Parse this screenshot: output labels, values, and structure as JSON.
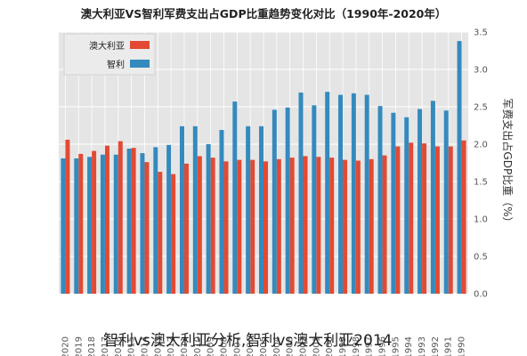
{
  "caption": "智利vs澳大利亚分析,智利vs澳大利亚2014",
  "colors": {
    "australia": "#e24a33",
    "chile": "#348abd",
    "plot_bg": "#e5e5e5",
    "grid": "#ffffff"
  },
  "chart_data": {
    "type": "bar",
    "title": "澳大利亚VS智利军费支出占GDP比重趋势变化对比（1990年-2020年）",
    "ylabel": "军费支出占GDP比重（%）",
    "xlabel": "",
    "ylim": [
      0,
      3.5
    ],
    "yticks": [
      0.0,
      0.5,
      1.0,
      1.5,
      2.0,
      2.5,
      3.0,
      3.5
    ],
    "grid": true,
    "legend_position": "top-right",
    "categories": [
      "1990",
      "1991",
      "1992",
      "1993",
      "1994",
      "1995",
      "1996",
      "1997",
      "1998",
      "1999",
      "2000",
      "2001",
      "2002",
      "2003",
      "2004",
      "2005",
      "2006",
      "2007",
      "2008",
      "2009",
      "2010",
      "2011",
      "2012",
      "2013",
      "2014",
      "2015",
      "2016",
      "2017",
      "2018",
      "2019",
      "2020"
    ],
    "series": [
      {
        "name": "澳大利亚",
        "color": "#e24a33",
        "values": [
          2.05,
          1.97,
          1.97,
          2.01,
          2.02,
          1.97,
          1.85,
          1.8,
          1.78,
          1.79,
          1.82,
          1.83,
          1.84,
          1.82,
          1.8,
          1.77,
          1.79,
          1.79,
          1.77,
          1.82,
          1.84,
          1.74,
          1.6,
          1.63,
          1.76,
          1.95,
          2.04,
          1.98,
          1.91,
          1.87,
          2.06
        ]
      },
      {
        "name": "智利",
        "color": "#348abd",
        "values": [
          3.38,
          2.45,
          2.58,
          2.47,
          2.36,
          2.42,
          2.51,
          2.66,
          2.68,
          2.66,
          2.7,
          2.52,
          2.69,
          2.49,
          2.46,
          2.24,
          2.24,
          2.57,
          2.19,
          2.0,
          2.24,
          2.24,
          1.99,
          1.96,
          1.88,
          1.94,
          1.86,
          1.86,
          1.83,
          1.81,
          1.81
        ]
      }
    ]
  }
}
